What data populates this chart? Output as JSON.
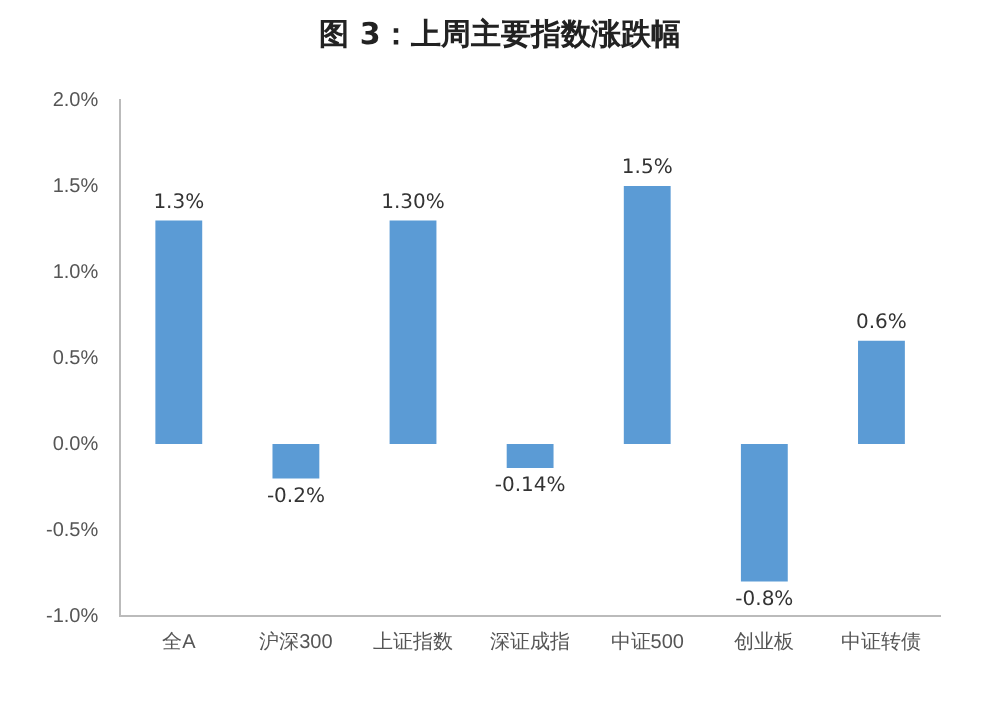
{
  "chart_data": {
    "type": "bar",
    "title": "图 3：上周主要指数涨跌幅",
    "categories": [
      "全A",
      "沪深300",
      "上证指数",
      "深证成指",
      "中证500",
      "创业板",
      "中证转债"
    ],
    "values": [
      1.3,
      -0.2,
      1.3,
      -0.14,
      1.5,
      -0.8,
      0.6
    ],
    "value_labels": [
      "1.3%",
      "-0.2%",
      "1.30%",
      "-0.14%",
      "1.5%",
      "-0.8%",
      "0.6%"
    ],
    "color": "#5b9bd5",
    "ylim": [
      -1.0,
      2.0
    ],
    "yticks": [
      {
        "value": -1.0,
        "label": "-1.0%"
      },
      {
        "value": -0.5,
        "label": "-0.5%"
      },
      {
        "value": 0,
        "label": "0.0%"
      },
      {
        "value": 0.5,
        "label": "0.5%"
      },
      {
        "value": 1.0,
        "label": "1.0%"
      },
      {
        "value": 1.5,
        "label": "1.5%"
      },
      {
        "value": 2.0,
        "label": "2.0%"
      }
    ],
    "grid": false,
    "legend": false
  }
}
